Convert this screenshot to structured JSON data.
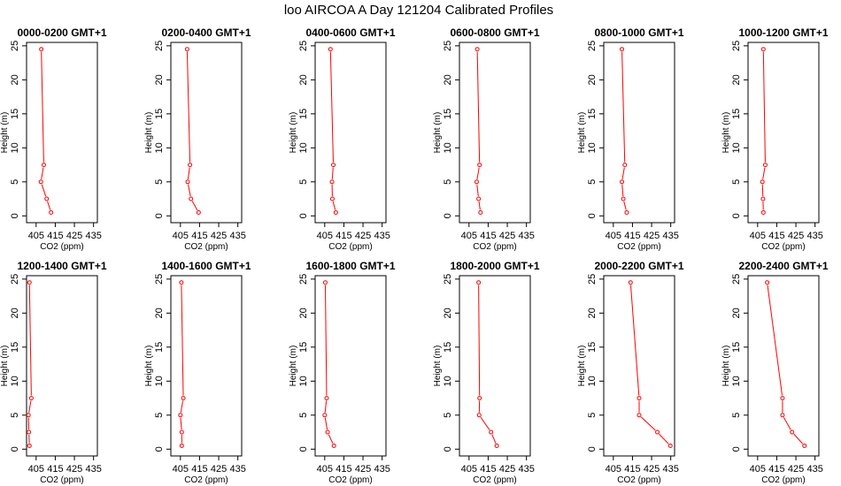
{
  "figure_title": "loo AIRCOA A  Day 121204  Calibrated Profiles",
  "chart_data": [
    {
      "type": "line",
      "title": "0000-0200 GMT+1",
      "xlabel": "CO2 (ppm)",
      "ylabel": "Height (m)",
      "xlim": [
        400,
        437
      ],
      "ylim": [
        -1,
        25.5
      ],
      "xticks": [
        405,
        415,
        425,
        435
      ],
      "yticks": [
        0,
        5,
        10,
        15,
        20,
        25
      ],
      "series": [
        {
          "x": [
            412.8,
            410.5,
            407.5,
            409.0,
            407.7
          ],
          "y": [
            0.5,
            2.5,
            5,
            7.5,
            24.5
          ]
        }
      ]
    },
    {
      "type": "line",
      "title": "0200-0400 GMT+1",
      "xlabel": "CO2 (ppm)",
      "ylabel": "Height (m)",
      "xlim": [
        400,
        437
      ],
      "ylim": [
        -1,
        25.5
      ],
      "xticks": [
        405,
        415,
        425,
        435
      ],
      "yticks": [
        0,
        5,
        10,
        15,
        20,
        25
      ],
      "series": [
        {
          "x": [
            414.5,
            410.5,
            408.8,
            410.0,
            408.5
          ],
          "y": [
            0.5,
            2.5,
            5,
            7.5,
            24.5
          ]
        }
      ]
    },
    {
      "type": "line",
      "title": "0400-0600 GMT+1",
      "xlabel": "CO2 (ppm)",
      "ylabel": "Height (m)",
      "xlim": [
        400,
        437
      ],
      "ylim": [
        -1,
        25.5
      ],
      "xticks": [
        405,
        415,
        425,
        435
      ],
      "yticks": [
        0,
        5,
        10,
        15,
        20,
        25
      ],
      "series": [
        {
          "x": [
            410.8,
            409.0,
            408.8,
            409.5,
            408.0
          ],
          "y": [
            0.5,
            2.5,
            5,
            7.5,
            24.5
          ]
        }
      ]
    },
    {
      "type": "line",
      "title": "0600-0800 GMT+1",
      "xlabel": "CO2 (ppm)",
      "ylabel": "Height (m)",
      "xlim": [
        400,
        437
      ],
      "ylim": [
        -1,
        25.5
      ],
      "xticks": [
        405,
        415,
        425,
        435
      ],
      "yticks": [
        0,
        5,
        10,
        15,
        20,
        25
      ],
      "series": [
        {
          "x": [
            411.0,
            410.0,
            409.0,
            410.5,
            409.3
          ],
          "y": [
            0.5,
            2.5,
            5,
            7.5,
            24.5
          ]
        }
      ]
    },
    {
      "type": "line",
      "title": "0800-1000 GMT+1",
      "xlabel": "CO2 (ppm)",
      "ylabel": "Height (m)",
      "xlim": [
        400,
        437
      ],
      "ylim": [
        -1,
        25.5
      ],
      "xticks": [
        405,
        415,
        425,
        435
      ],
      "yticks": [
        0,
        5,
        10,
        15,
        20,
        25
      ],
      "series": [
        {
          "x": [
            412.0,
            410.2,
            409.5,
            411.0,
            409.5
          ],
          "y": [
            0.5,
            2.5,
            5,
            7.5,
            24.5
          ]
        }
      ]
    },
    {
      "type": "line",
      "title": "1000-1200 GMT+1",
      "xlabel": "CO2 (ppm)",
      "ylabel": "Height (m)",
      "xlim": [
        400,
        437
      ],
      "ylim": [
        -1,
        25.5
      ],
      "xticks": [
        405,
        415,
        425,
        435
      ],
      "yticks": [
        0,
        5,
        10,
        15,
        20,
        25
      ],
      "series": [
        {
          "x": [
            408.0,
            407.8,
            407.5,
            409.0,
            408.0
          ],
          "y": [
            0.5,
            2.5,
            5,
            7.5,
            24.5
          ]
        }
      ]
    },
    {
      "type": "line",
      "title": "1200-1400 GMT+1",
      "xlabel": "CO2 (ppm)",
      "ylabel": "Height (m)",
      "xlim": [
        400,
        437
      ],
      "ylim": [
        -1,
        25.5
      ],
      "xticks": [
        405,
        415,
        425,
        435
      ],
      "yticks": [
        0,
        5,
        10,
        15,
        20,
        25
      ],
      "series": [
        {
          "x": [
            401.5,
            401.2,
            401.0,
            402.5,
            401.5
          ],
          "y": [
            0.5,
            2.5,
            5,
            7.5,
            24.5
          ]
        }
      ]
    },
    {
      "type": "line",
      "title": "1400-1600 GMT+1",
      "xlabel": "CO2 (ppm)",
      "ylabel": "Height (m)",
      "xlim": [
        400,
        437
      ],
      "ylim": [
        -1,
        25.5
      ],
      "xticks": [
        405,
        415,
        425,
        435
      ],
      "yticks": [
        0,
        5,
        10,
        15,
        20,
        25
      ],
      "series": [
        {
          "x": [
            405.7,
            405.7,
            405.0,
            406.5,
            405.5
          ],
          "y": [
            0.5,
            2.5,
            5,
            7.5,
            24.5
          ]
        }
      ]
    },
    {
      "type": "line",
      "title": "1600-1800 GMT+1",
      "xlabel": "CO2 (ppm)",
      "ylabel": "Height (m)",
      "xlim": [
        400,
        437
      ],
      "ylim": [
        -1,
        25.5
      ],
      "xticks": [
        405,
        415,
        425,
        435
      ],
      "yticks": [
        0,
        5,
        10,
        15,
        20,
        25
      ],
      "series": [
        {
          "x": [
            409.8,
            406.5,
            405.0,
            406.0,
            405.3
          ],
          "y": [
            0.5,
            2.5,
            5,
            7.5,
            24.5
          ]
        }
      ]
    },
    {
      "type": "line",
      "title": "1800-2000 GMT+1",
      "xlabel": "CO2 (ppm)",
      "ylabel": "Height (m)",
      "xlim": [
        400,
        437
      ],
      "ylim": [
        -1,
        25.5
      ],
      "xticks": [
        405,
        415,
        425,
        435
      ],
      "yticks": [
        0,
        5,
        10,
        15,
        20,
        25
      ],
      "series": [
        {
          "x": [
            419.5,
            416.5,
            410.3,
            410.5,
            410.0
          ],
          "y": [
            0.5,
            2.5,
            5,
            7.5,
            24.5
          ]
        }
      ]
    },
    {
      "type": "line",
      "title": "2000-2200 GMT+1",
      "xlabel": "CO2 (ppm)",
      "ylabel": "Height (m)",
      "xlim": [
        400,
        437
      ],
      "ylim": [
        -1,
        25.5
      ],
      "xticks": [
        405,
        415,
        425,
        435
      ],
      "yticks": [
        0,
        5,
        10,
        15,
        20,
        25
      ],
      "series": [
        {
          "x": [
            434.8,
            428.0,
            418.5,
            418.5,
            414.0
          ],
          "y": [
            0.5,
            2.5,
            5,
            7.5,
            24.5
          ]
        }
      ]
    },
    {
      "type": "line",
      "title": "2200-2400 GMT+1",
      "xlabel": "CO2 (ppm)",
      "ylabel": "Height (m)",
      "xlim": [
        400,
        437
      ],
      "ylim": [
        -1,
        25.5
      ],
      "xticks": [
        405,
        415,
        425,
        435
      ],
      "yticks": [
        0,
        5,
        10,
        15,
        20,
        25
      ],
      "series": [
        {
          "x": [
            429.5,
            423.0,
            418.0,
            418.0,
            410.0
          ],
          "y": [
            0.5,
            2.5,
            5,
            7.5,
            24.5
          ]
        }
      ]
    }
  ],
  "series_color": "#ff0000"
}
